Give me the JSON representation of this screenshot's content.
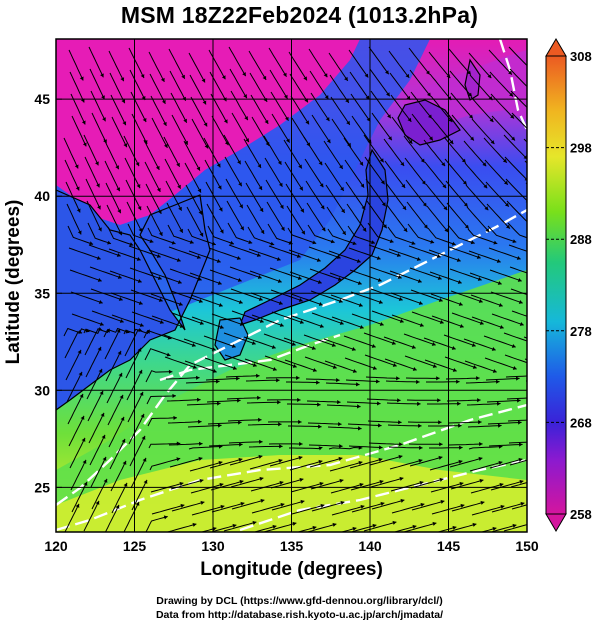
{
  "title": "MSM 18Z22Feb2024 (1013.2hPa)",
  "x_axis": {
    "label": "Longitude (degrees)",
    "ticks": [
      "120",
      "125",
      "130",
      "135",
      "140",
      "145",
      "150"
    ]
  },
  "y_axis": {
    "label": "Latitude  (degrees)",
    "ticks": [
      "25",
      "30",
      "35",
      "40",
      "45"
    ]
  },
  "colorbar": {
    "ticks": [
      "258",
      "268",
      "278",
      "288",
      "298",
      "308"
    ],
    "colors": [
      "#d4159e",
      "#5b1fd6",
      "#1f47e8",
      "#16b8d9",
      "#23c97a",
      "#79e01b",
      "#e6e62a",
      "#f0b520",
      "#ec5a22"
    ]
  },
  "credits": {
    "line1": "Drawing by DCL (https://www.gfd-dennou.org/library/dcl/)",
    "line2": "Data from http://database.rish.kyoto-u.ac.jp/arch/jmadata/"
  },
  "map_colors": {
    "cold": "#e61cb6",
    "cool": "#2b58ee",
    "mid": "#1ec8d4",
    "warm": "#5fe04a",
    "hot": "#d9ee2e",
    "contour": "#ffffff",
    "streamline": "#000000"
  }
}
